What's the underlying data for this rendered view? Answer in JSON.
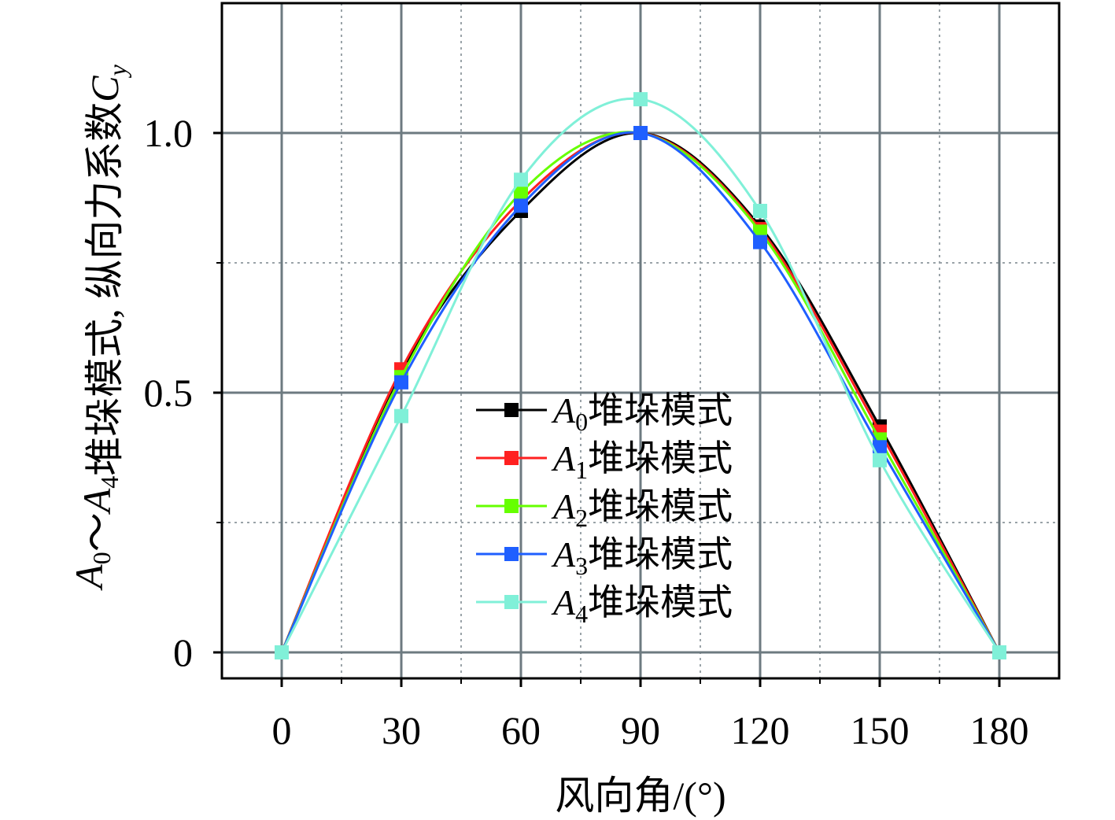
{
  "chart_data": {
    "type": "line",
    "xlabel": "风向角/(°)",
    "ylabel": {
      "parts": [
        {
          "text": "A",
          "italic": true
        },
        {
          "text": "0",
          "sub": true
        },
        {
          "text": "～"
        },
        {
          "text": "A",
          "italic": true
        },
        {
          "text": "4",
          "sub": true
        },
        {
          "text": "堆垛模式, 纵向力系数"
        },
        {
          "text": "C",
          "italic": true
        },
        {
          "text": "y",
          "italic": true,
          "sub": true
        }
      ]
    },
    "xlim": [
      -15,
      195
    ],
    "ylim": [
      -0.05,
      1.25
    ],
    "x_ticks": [
      0,
      30,
      60,
      90,
      120,
      150,
      180
    ],
    "x_tick_labels": [
      "0",
      "30",
      "60",
      "90",
      "120",
      "150",
      "180"
    ],
    "x_minor_ticks": [
      15,
      45,
      75,
      105,
      135,
      165
    ],
    "y_ticks": [
      0,
      0.5,
      1.0
    ],
    "y_tick_labels": [
      "0",
      "0.5",
      "1.0"
    ],
    "y_minor_ticks": [
      0.25,
      0.75
    ],
    "grid": true,
    "legend_position": "center-bottom",
    "x": [
      0,
      30,
      60,
      90,
      120,
      150,
      180
    ],
    "series": [
      {
        "name_prefix": "A",
        "name_sub": "0",
        "name_suffix": "堆垛模式",
        "color": "#000000",
        "values": [
          0,
          0.54,
          0.85,
          1.0,
          0.82,
          0.435,
          0
        ]
      },
      {
        "name_prefix": "A",
        "name_sub": "1",
        "name_suffix": "堆垛模式",
        "color": "#ff2020",
        "values": [
          0,
          0.545,
          0.87,
          1.0,
          0.815,
          0.425,
          0
        ]
      },
      {
        "name_prefix": "A",
        "name_sub": "2",
        "name_suffix": "堆垛模式",
        "color": "#66ff00",
        "values": [
          0,
          0.53,
          0.885,
          1.0,
          0.81,
          0.41,
          0
        ]
      },
      {
        "name_prefix": "A",
        "name_sub": "3",
        "name_suffix": "堆垛模式",
        "color": "#1f5fff",
        "values": [
          0,
          0.52,
          0.86,
          1.0,
          0.79,
          0.395,
          0
        ]
      },
      {
        "name_prefix": "A",
        "name_sub": "4",
        "name_suffix": "堆垛模式",
        "color": "#80f0d8",
        "values": [
          0,
          0.455,
          0.91,
          1.065,
          0.85,
          0.37,
          0
        ]
      }
    ]
  }
}
